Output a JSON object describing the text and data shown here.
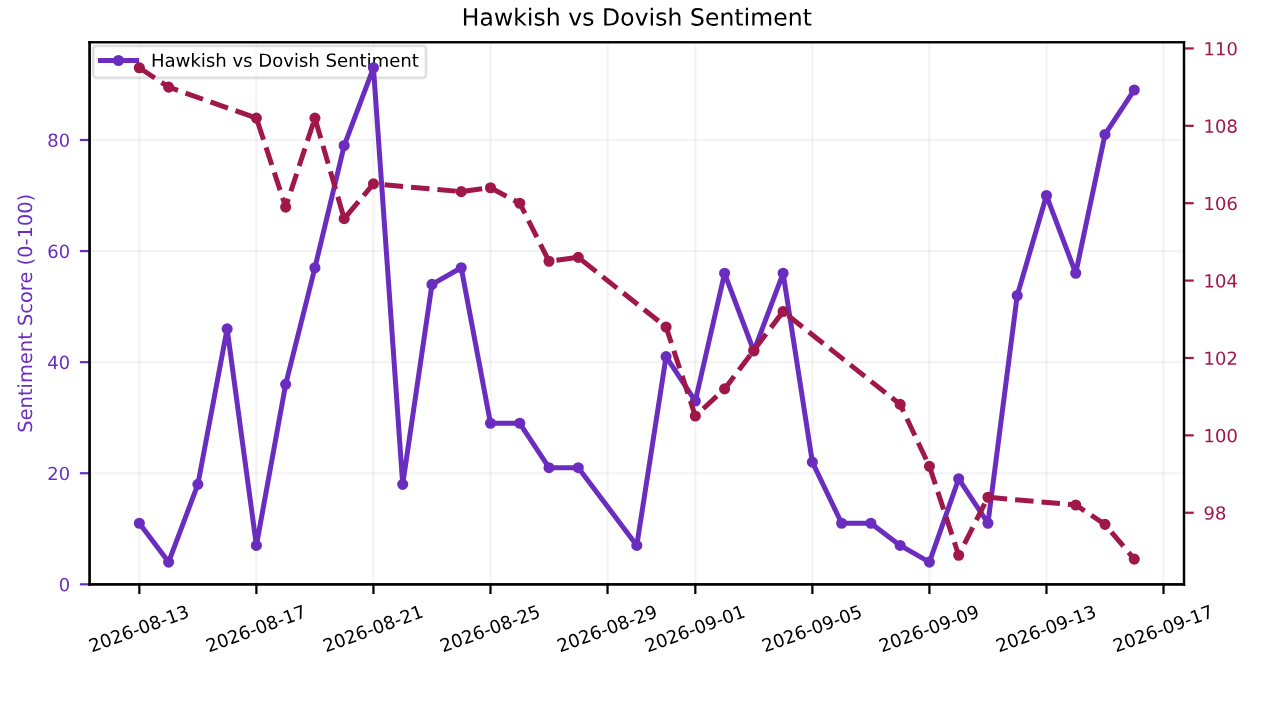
{
  "chart_data": {
    "type": "line",
    "title": "Hawkish vs Dovish Sentiment",
    "ylabel": "Sentiment Score (0-100)",
    "xlim": [
      "2026-08-11T07:12",
      "2026-09-17T16:48"
    ],
    "xticks": [
      "2026-08-13",
      "2026-08-17",
      "2026-08-21",
      "2026-08-25",
      "2026-08-29",
      "2026-09-01",
      "2026-09-05",
      "2026-09-09",
      "2026-09-13",
      "2026-09-17"
    ],
    "ylim": [
      0,
      97.6
    ],
    "yticks": [
      0,
      20,
      40,
      60,
      80
    ],
    "y2lim": [
      96.15,
      110.16
    ],
    "y2ticks": [
      98,
      100,
      102,
      104,
      106,
      108,
      110
    ],
    "grid": true,
    "legend": "top left",
    "marker": "circle",
    "series": [
      {
        "name": "Hawkish vs Dovish Sentiment",
        "color": "#6a2dbf",
        "line_style": "solid",
        "x": [
          "2026-08-13",
          "2026-08-14",
          "2026-08-15",
          "2026-08-16",
          "2026-08-17",
          "2026-08-18",
          "2026-08-19",
          "2026-08-20",
          "2026-08-21",
          "2026-08-22",
          "2026-08-23",
          "2026-08-24",
          "2026-08-25",
          "2026-08-26",
          "2026-08-27",
          "2026-08-28",
          "2026-08-30",
          "2026-08-31",
          "2026-09-01",
          "2026-09-02",
          "2026-09-03",
          "2026-09-04",
          "2026-09-05",
          "2026-09-06",
          "2026-09-07",
          "2026-09-08",
          "2026-09-09",
          "2026-09-10",
          "2026-09-11",
          "2026-09-12",
          "2026-09-13",
          "2026-09-14",
          "2026-09-15",
          "2026-09-16"
        ],
        "values": [
          11,
          4,
          18,
          46,
          7,
          36,
          57,
          79,
          93,
          18,
          54,
          57,
          29,
          29,
          21,
          21,
          7,
          41,
          33,
          56,
          42,
          56,
          22,
          11,
          11,
          7,
          4,
          19,
          11,
          52,
          70,
          56,
          81,
          89
        ]
      },
      {
        "color": "#a0174a",
        "axis": "y2",
        "line_style": "dashed",
        "x": [
          "2026-08-13",
          "2026-08-14",
          "2026-08-17",
          "2026-08-18",
          "2026-08-19",
          "2026-08-20",
          "2026-08-21",
          "2026-08-24",
          "2026-08-25",
          "2026-08-26",
          "2026-08-27",
          "2026-08-28",
          "2026-08-31",
          "2026-09-01",
          "2026-09-02",
          "2026-09-03",
          "2026-09-04",
          "2026-09-08",
          "2026-09-09",
          "2026-09-10",
          "2026-09-11",
          "2026-09-14",
          "2026-09-15",
          "2026-09-16"
        ],
        "values": [
          109.5,
          109.0,
          108.2,
          105.9,
          108.2,
          105.6,
          106.5,
          106.3,
          106.4,
          106.0,
          104.5,
          104.6,
          102.8,
          100.5,
          101.2,
          102.2,
          103.2,
          100.8,
          99.2,
          96.9,
          98.4,
          98.2,
          97.7,
          96.8
        ]
      }
    ]
  }
}
